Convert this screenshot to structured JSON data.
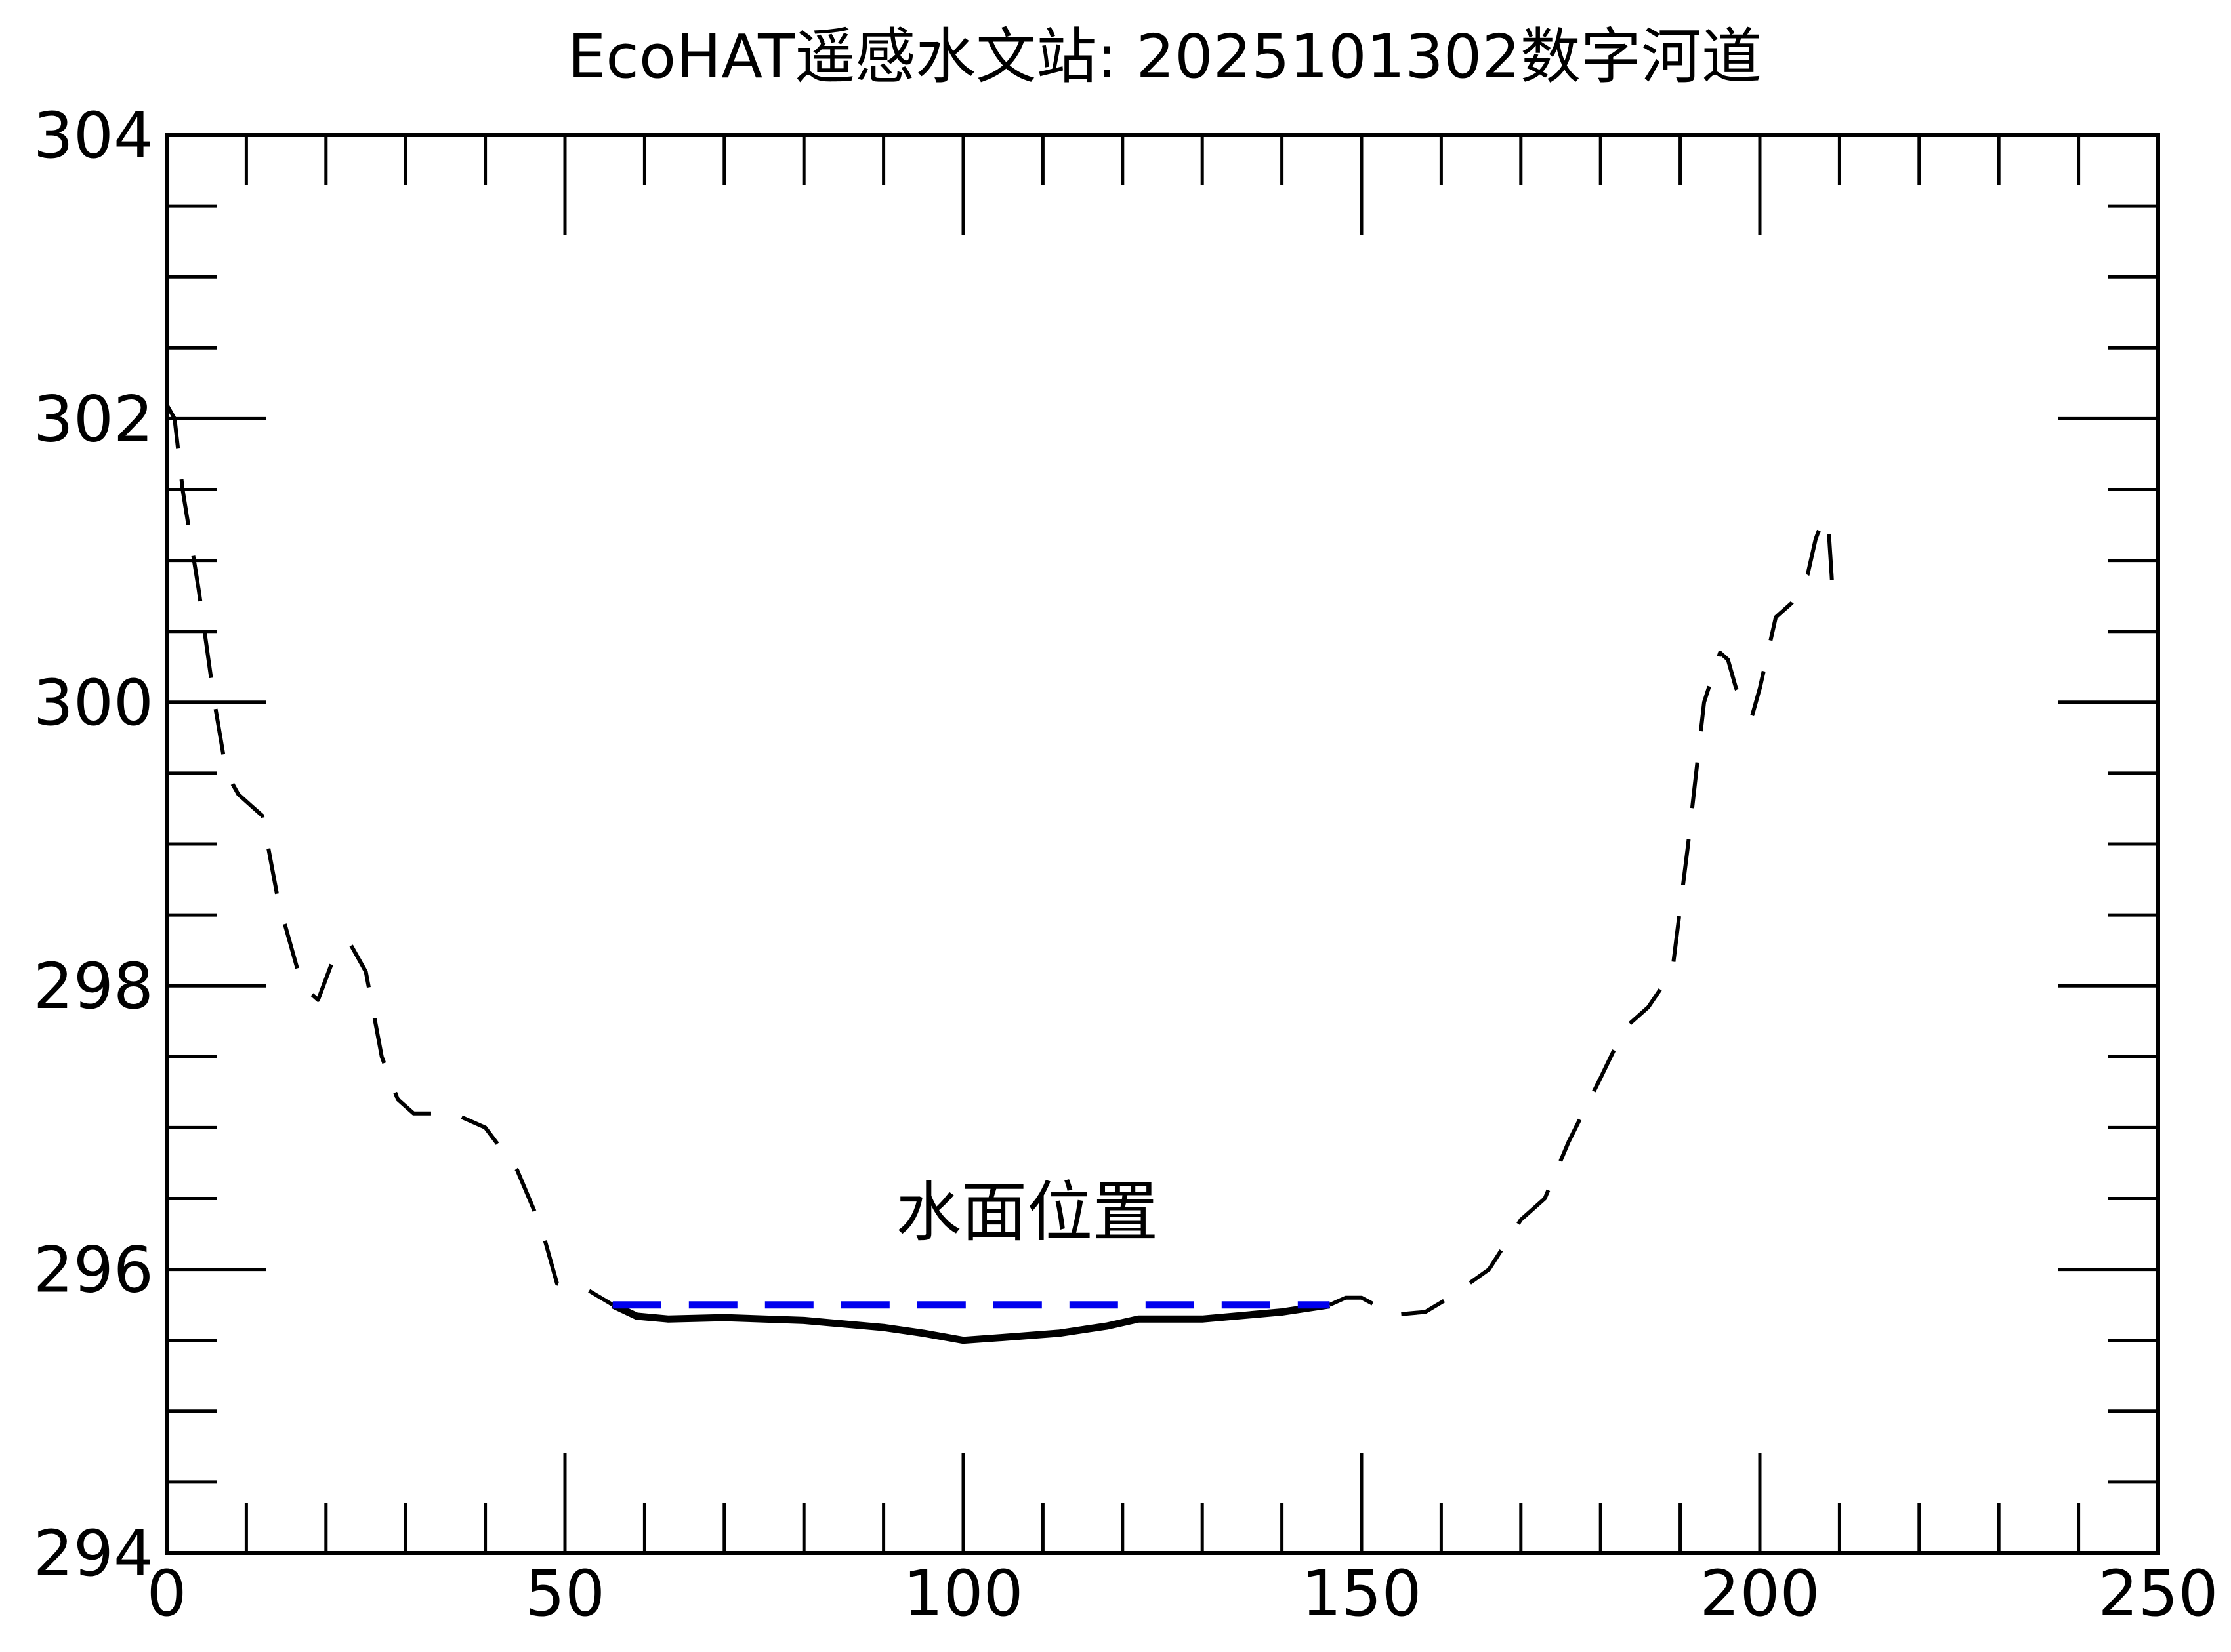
{
  "chart_data": {
    "type": "line",
    "title": "EcoHAT遥感水文站: 2025101302数字河道",
    "xlabel": "",
    "ylabel": "",
    "xlim": [
      0,
      250
    ],
    "ylim": [
      294,
      304
    ],
    "x_ticks": [
      "0",
      "50",
      "100",
      "150",
      "200",
      "250"
    ],
    "y_ticks": [
      "294",
      "296",
      "298",
      "300",
      "302",
      "304"
    ],
    "grid": false,
    "annotation": {
      "text": "水面位置",
      "x": 108,
      "y": 296.4,
      "color": "#10106e"
    },
    "series": [
      {
        "style": "dashed",
        "color": "#000000",
        "x": [
          0,
          1,
          2,
          4,
          6,
          7.5,
          9,
          12,
          14,
          17,
          19,
          21,
          23,
          25,
          27,
          29,
          31,
          36,
          40,
          44,
          47,
          49,
          53,
          56
        ],
        "y": [
          302.1,
          302.0,
          301.5,
          300.8,
          300.0,
          299.5,
          299.35,
          299.2,
          298.6,
          298.0,
          297.9,
          298.2,
          298.3,
          298.1,
          297.5,
          297.2,
          297.1,
          297.1,
          297.0,
          296.7,
          296.3,
          295.9,
          295.85,
          295.75
        ]
      },
      {
        "style": "solid",
        "color": "#000000",
        "x": [
          56,
          59,
          63,
          70,
          80,
          90,
          95,
          100,
          105,
          112,
          118,
          122,
          130,
          140,
          146
        ],
        "y": [
          295.75,
          295.67,
          295.65,
          295.66,
          295.64,
          295.59,
          295.55,
          295.5,
          295.52,
          295.55,
          295.6,
          295.65,
          295.65,
          295.7,
          295.75
        ]
      },
      {
        "style": "dashed",
        "color": "#000000",
        "x": [
          146,
          148,
          150,
          154,
          158,
          161,
          166,
          170,
          173,
          176,
          180,
          183,
          186,
          189,
          191,
          193,
          195,
          196,
          197,
          199,
          200,
          202,
          204,
          206,
          207,
          208,
          208.6,
          209,
          209.2
        ],
        "y": [
          295.75,
          295.8,
          295.8,
          295.68,
          295.7,
          295.8,
          296.0,
          296.35,
          296.5,
          296.9,
          297.35,
          297.7,
          297.85,
          298.1,
          299.0,
          300.0,
          300.35,
          300.3,
          300.1,
          299.9,
          300.1,
          300.6,
          300.7,
          300.9,
          301.15,
          301.3,
          301.25,
          300.9,
          300.7
        ]
      },
      {
        "style": "dashed",
        "color": "#0000ee",
        "x": [
          56,
          146
        ],
        "y": [
          295.75,
          295.75
        ]
      }
    ]
  }
}
